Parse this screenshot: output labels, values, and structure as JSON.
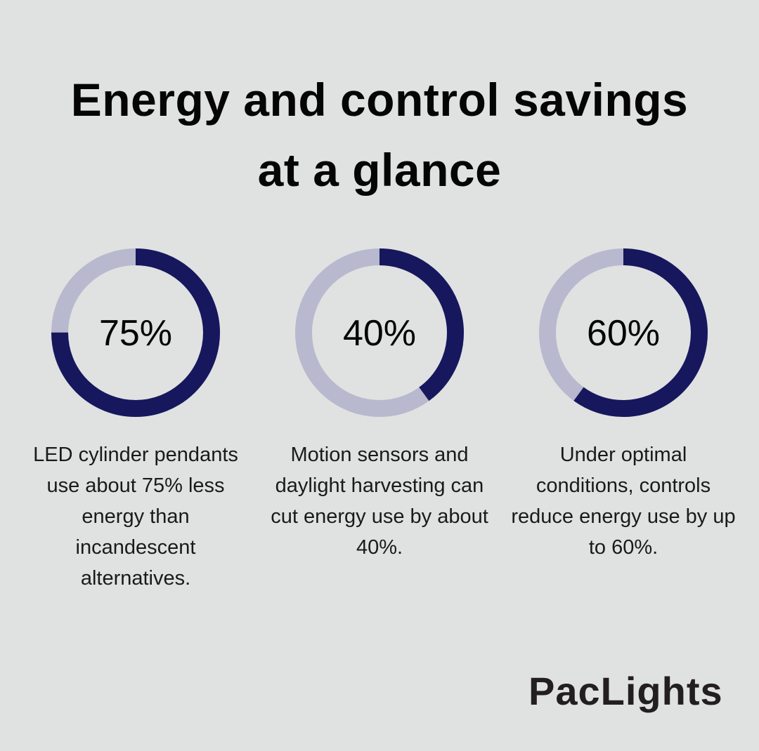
{
  "title_lines": [
    "Energy and control savings",
    "at a glance"
  ],
  "colors": {
    "filled": "#17175e",
    "remainder": "#b8b9ce",
    "background": "#e0e2e1"
  },
  "chart_data": [
    {
      "type": "pie",
      "style": "donut",
      "values": [
        75,
        25
      ],
      "label": "75%",
      "caption": "LED cylinder pendants use about 75% less energy than incandescent alternatives."
    },
    {
      "type": "pie",
      "style": "donut",
      "values": [
        40,
        60
      ],
      "label": "40%",
      "caption": "Motion sensors and daylight harvesting can cut energy use by about 40%."
    },
    {
      "type": "pie",
      "style": "donut",
      "values": [
        60,
        40
      ],
      "label": "60%",
      "caption": "Under optimal conditions, controls reduce energy use by up to 60%."
    }
  ],
  "logo": "PacLights"
}
